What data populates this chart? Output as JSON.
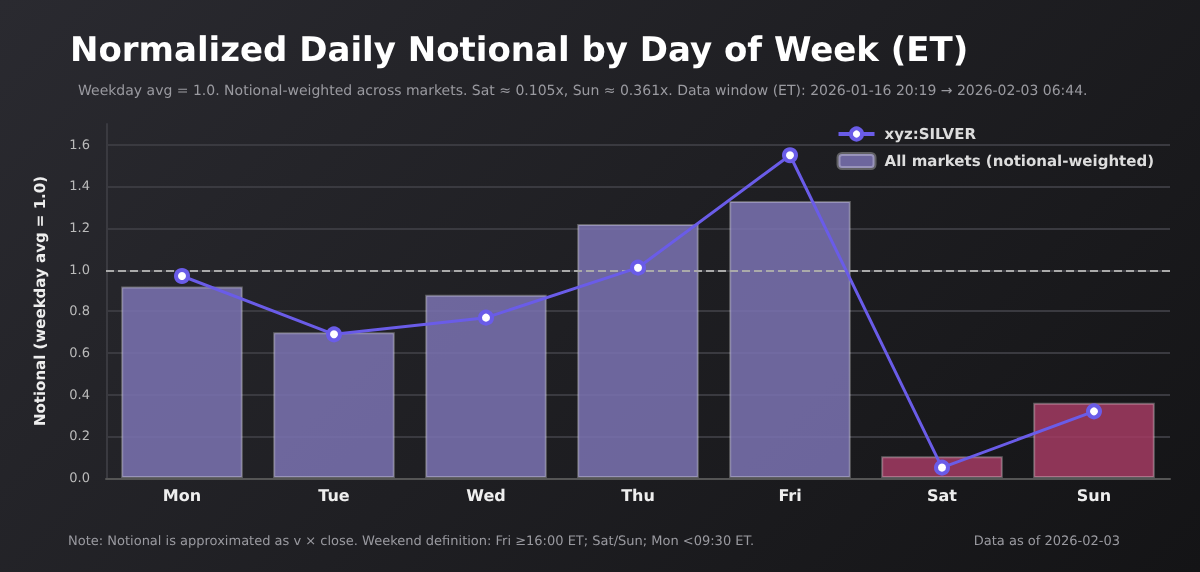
{
  "chart_data": {
    "type": "bar",
    "title": "Normalized Daily Notional by Day of Week (ET)",
    "subtitle": "Weekday avg = 1.0. Notional-weighted across markets. Sat ≈ 0.105x, Sun ≈ 0.361x. Data window (ET): 2026-01-16 20:19 → 2026-02-03 06:44.",
    "ylabel": "Notional (weekday avg = 1.0)",
    "categories": [
      "Mon",
      "Tue",
      "Wed",
      "Thu",
      "Fri",
      "Sat",
      "Sun"
    ],
    "series": [
      {
        "name": "All markets (notional-weighted)",
        "color": "#7b73b3",
        "colors": [
          "#7b73b3",
          "#7b73b3",
          "#7b73b3",
          "#7b73b3",
          "#7b73b3",
          "#a33b63",
          "#a33b63"
        ],
        "values": [
          0.92,
          0.7,
          0.88,
          1.22,
          1.33,
          0.105,
          0.361
        ]
      },
      {
        "type": "line",
        "name": "xyz:SILVER",
        "color": "#6a5ce8",
        "values": [
          0.97,
          0.69,
          0.77,
          1.01,
          1.55,
          0.05,
          0.32
        ]
      }
    ],
    "ylim": [
      0,
      1.7
    ],
    "yticks": [
      {
        "value": 0,
        "label": "0.0"
      },
      0.2,
      0.4,
      0.6,
      0.8,
      {
        "value": 1,
        "label": "1.0"
      },
      1.2,
      1.4,
      1.6
    ],
    "grid": "y",
    "legend": "top right",
    "marker": "circle",
    "line_style": "solid",
    "ref_lines": [
      {
        "axis": "y",
        "value": 1.0,
        "color": "#aaaaaa",
        "line_style": "dashed"
      }
    ],
    "annotations": [
      "Note: Notional is approximated as v × close. Weekend definition: Fri ≥16:00 ET; Sat/Sun; Mon <09:30 ET.",
      "Data as of 2026-02-03"
    ]
  }
}
